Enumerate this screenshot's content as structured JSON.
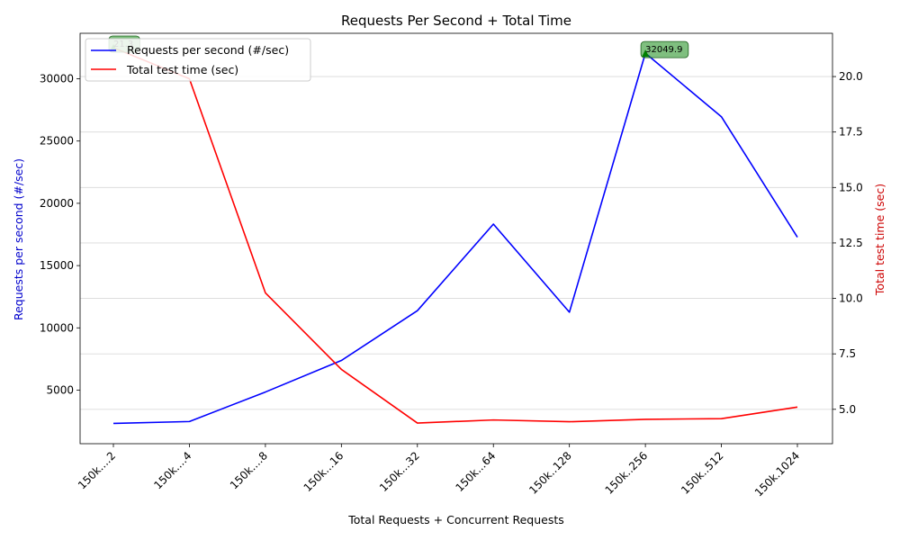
{
  "chart_data": {
    "type": "line",
    "title": "Requests Per Second + Total Time",
    "xlabel": "Total Requests + Concurrent Requests",
    "categories": [
      "150k....2",
      "150k....4",
      "150k....8",
      "150k...16",
      "150k...32",
      "150k...64",
      "150k..128",
      "150k..256",
      "150k..512",
      "150k.1024"
    ],
    "series": [
      {
        "name": "Requests per second (#/sec)",
        "axis": "left",
        "color": "#0000ff",
        "values": [
          2330,
          2480,
          4850,
          7380,
          11380,
          18330,
          11260,
          32049.9,
          26950,
          17280
        ]
      },
      {
        "name": "Total test time (sec)",
        "axis": "right",
        "color": "#ff0000",
        "values": [
          21.3,
          19.9,
          10.25,
          6.8,
          4.38,
          4.52,
          4.44,
          4.55,
          4.58,
          5.1
        ]
      }
    ],
    "y_left": {
      "label": "Requests per second (#/sec)",
      "color": "#0000cc",
      "ylim": [
        700,
        33650
      ],
      "ticks": [
        5000,
        10000,
        15000,
        20000,
        25000,
        30000
      ]
    },
    "y_right": {
      "label": "Total test time (sec)",
      "color": "#cc0000",
      "ylim": [
        3.45,
        21.95
      ],
      "ticks": [
        5.0,
        7.5,
        10.0,
        12.5,
        15.0,
        17.5,
        20.0
      ]
    },
    "grid": "horizontal-right-axis",
    "legend_position": "top-left",
    "annotations": [
      {
        "text": "21.3",
        "series": 1,
        "index": 0,
        "marker_color": "#008000"
      },
      {
        "text": "32049.9",
        "series": 0,
        "index": 7,
        "marker_color": "#008000"
      }
    ]
  }
}
